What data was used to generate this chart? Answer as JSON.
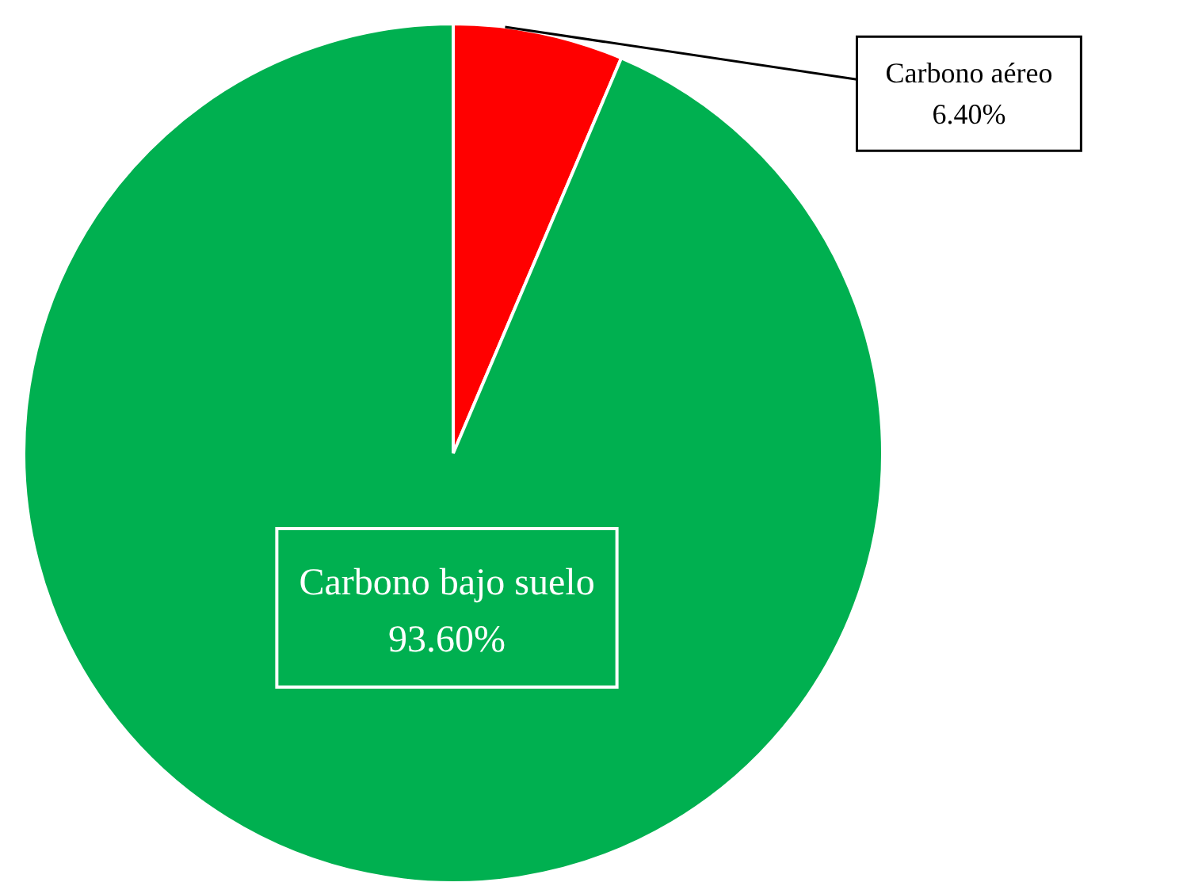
{
  "chart_data": {
    "type": "pie",
    "categories": [
      "Carbono aéreo",
      "Carbono bajo suelo"
    ],
    "values": [
      6.4,
      93.6
    ],
    "colors": [
      "#ff0000",
      "#00b050"
    ],
    "value_labels": [
      "6.40%",
      "93.60%"
    ],
    "legend": false
  }
}
